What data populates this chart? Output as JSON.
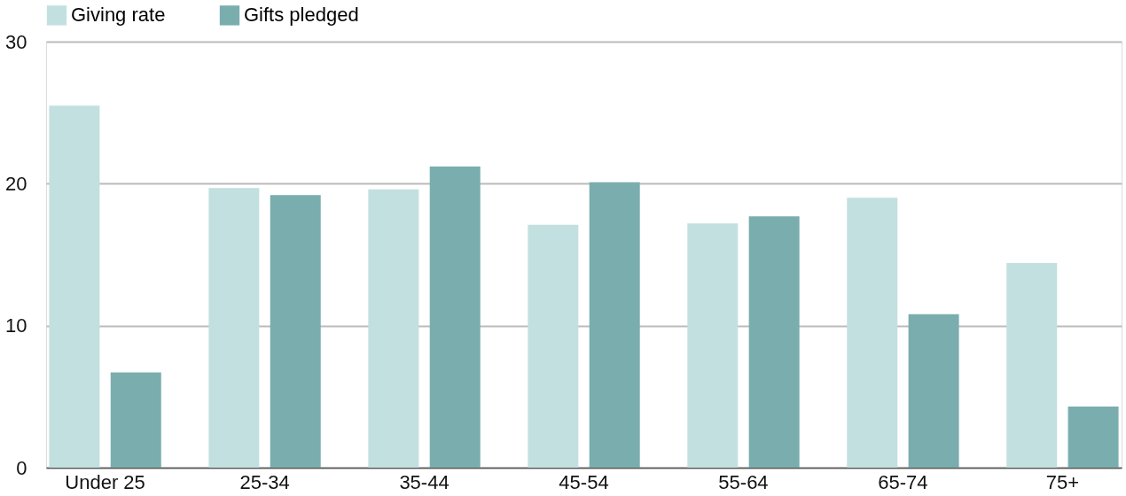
{
  "chart_data": {
    "type": "bar",
    "categories": [
      "Under 25",
      "25-34",
      "35-44",
      "45-54",
      "55-64",
      "65-74",
      "75+"
    ],
    "series": [
      {
        "name": "Giving rate",
        "color": "#c2e0df",
        "values": [
          25.5,
          19.7,
          19.6,
          17.1,
          17.2,
          19.0,
          14.4
        ]
      },
      {
        "name": "Gifts pledged",
        "color": "#7aadae",
        "values": [
          6.7,
          19.2,
          21.2,
          20.1,
          17.7,
          10.8,
          4.3
        ]
      }
    ],
    "ylim": [
      0,
      30
    ],
    "yticks": [
      0,
      10,
      20,
      30
    ],
    "grid": "y",
    "legend": "top"
  }
}
